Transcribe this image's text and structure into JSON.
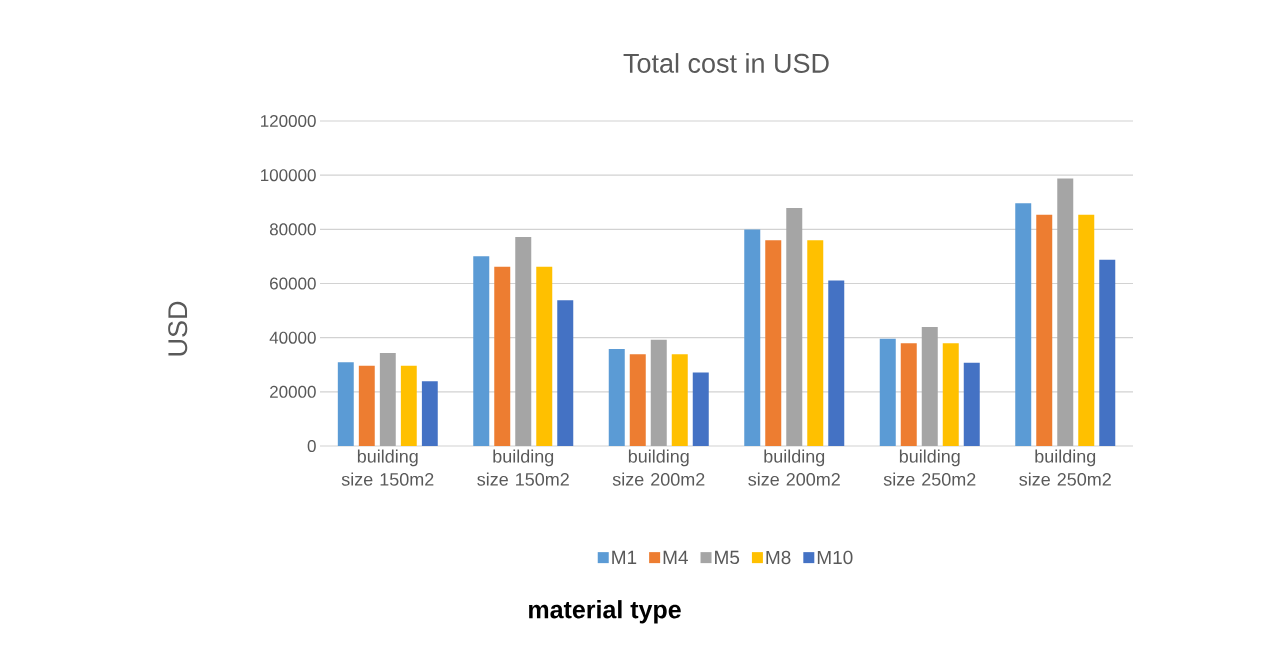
{
  "chart_data": {
    "type": "bar",
    "title": "Total cost in USD",
    "xlabel": "material type",
    "ylabel": "USD",
    "categories": [
      "building size 150m2",
      "building size 150m2",
      "building size 200m2",
      "building size 200m2",
      "building size 250m2",
      "building size 250m2"
    ],
    "series": [
      {
        "name": "M1",
        "color": "#5b9bd5",
        "values": [
          30900,
          70100,
          35800,
          79900,
          39600,
          89600
        ]
      },
      {
        "name": "M4",
        "color": "#ed7d31",
        "values": [
          29600,
          66200,
          33900,
          76000,
          37900,
          85400
        ]
      },
      {
        "name": "M5",
        "color": "#a5a5a5",
        "values": [
          34300,
          77200,
          39200,
          87900,
          43900,
          98800
        ]
      },
      {
        "name": "M8",
        "color": "#ffc000",
        "values": [
          29600,
          66200,
          33900,
          76000,
          37900,
          85400
        ]
      },
      {
        "name": "M10",
        "color": "#4472c4",
        "values": [
          23900,
          53800,
          27100,
          61100,
          30700,
          68800
        ]
      }
    ],
    "ylim": [
      0,
      120000
    ],
    "yticks": [
      0,
      20000,
      40000,
      60000,
      80000,
      100000,
      120000
    ],
    "grid": "y",
    "legend": "bottom"
  }
}
